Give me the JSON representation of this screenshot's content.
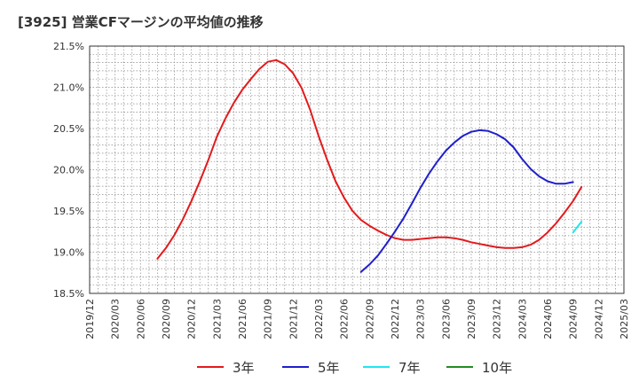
{
  "chart_data": {
    "type": "line",
    "title": "[3925]  営業CFマージンの平均値の推移",
    "yticks": [
      "21.5%",
      "21.0%",
      "20.5%",
      "20.0%",
      "19.5%",
      "19.0%",
      "18.5%"
    ],
    "ytick_values": [
      21.5,
      21.0,
      20.5,
      20.0,
      19.5,
      19.0,
      18.5
    ],
    "ylim": [
      18.5,
      21.5
    ],
    "xlim": [
      "2019-12",
      "2025-03"
    ],
    "xticks": [
      "2019/12",
      "2020/03",
      "2020/06",
      "2020/09",
      "2020/12",
      "2021/03",
      "2021/06",
      "2021/09",
      "2021/12",
      "2022/03",
      "2022/06",
      "2022/09",
      "2022/12",
      "2023/03",
      "2023/06",
      "2023/09",
      "2023/12",
      "2024/03",
      "2024/06",
      "2024/09",
      "2024/12",
      "2025/03"
    ],
    "grid": true,
    "legend_position": "bottom",
    "series": [
      {
        "name": "3年",
        "color": "#e31a1c",
        "points": [
          [
            "2020-08",
            18.92
          ],
          [
            "2020-09",
            19.05
          ],
          [
            "2020-10",
            19.21
          ],
          [
            "2020-11",
            19.4
          ],
          [
            "2020-12",
            19.62
          ],
          [
            "2021-01",
            19.86
          ],
          [
            "2021-02",
            20.12
          ],
          [
            "2021-03",
            20.4
          ],
          [
            "2021-04",
            20.62
          ],
          [
            "2021-05",
            20.81
          ],
          [
            "2021-06",
            20.97
          ],
          [
            "2021-07",
            21.1
          ],
          [
            "2021-08",
            21.22
          ],
          [
            "2021-09",
            21.31
          ],
          [
            "2021-10",
            21.33
          ],
          [
            "2021-11",
            21.28
          ],
          [
            "2021-12",
            21.17
          ],
          [
            "2022-01",
            20.99
          ],
          [
            "2022-02",
            20.73
          ],
          [
            "2022-03",
            20.41
          ],
          [
            "2022-04",
            20.12
          ],
          [
            "2022-05",
            19.86
          ],
          [
            "2022-06",
            19.66
          ],
          [
            "2022-07",
            19.5
          ],
          [
            "2022-08",
            19.39
          ],
          [
            "2022-09",
            19.32
          ],
          [
            "2022-10",
            19.26
          ],
          [
            "2022-11",
            19.21
          ],
          [
            "2022-12",
            19.17
          ],
          [
            "2023-01",
            19.15
          ],
          [
            "2023-02",
            19.15
          ],
          [
            "2023-03",
            19.16
          ],
          [
            "2023-04",
            19.17
          ],
          [
            "2023-05",
            19.18
          ],
          [
            "2023-06",
            19.18
          ],
          [
            "2023-07",
            19.17
          ],
          [
            "2023-08",
            19.15
          ],
          [
            "2023-09",
            19.12
          ],
          [
            "2023-10",
            19.1
          ],
          [
            "2023-11",
            19.08
          ],
          [
            "2023-12",
            19.06
          ],
          [
            "2024-01",
            19.05
          ],
          [
            "2024-02",
            19.05
          ],
          [
            "2024-03",
            19.06
          ],
          [
            "2024-04",
            19.09
          ],
          [
            "2024-05",
            19.15
          ],
          [
            "2024-06",
            19.24
          ],
          [
            "2024-07",
            19.35
          ],
          [
            "2024-08",
            19.48
          ],
          [
            "2024-09",
            19.62
          ],
          [
            "2024-10",
            19.79
          ]
        ]
      },
      {
        "name": "5年",
        "color": "#1f1fcc",
        "points": [
          [
            "2022-08",
            18.76
          ],
          [
            "2022-09",
            18.85
          ],
          [
            "2022-10",
            18.96
          ],
          [
            "2022-11",
            19.1
          ],
          [
            "2022-12",
            19.25
          ],
          [
            "2023-01",
            19.41
          ],
          [
            "2023-02",
            19.59
          ],
          [
            "2023-03",
            19.78
          ],
          [
            "2023-04",
            19.95
          ],
          [
            "2023-05",
            20.1
          ],
          [
            "2023-06",
            20.23
          ],
          [
            "2023-07",
            20.33
          ],
          [
            "2023-08",
            20.41
          ],
          [
            "2023-09",
            20.46
          ],
          [
            "2023-10",
            20.48
          ],
          [
            "2023-11",
            20.47
          ],
          [
            "2023-12",
            20.43
          ],
          [
            "2024-01",
            20.37
          ],
          [
            "2024-02",
            20.27
          ],
          [
            "2024-03",
            20.13
          ],
          [
            "2024-04",
            20.01
          ],
          [
            "2024-05",
            19.92
          ],
          [
            "2024-06",
            19.86
          ],
          [
            "2024-07",
            19.83
          ],
          [
            "2024-08",
            19.83
          ],
          [
            "2024-09",
            19.85
          ]
        ]
      },
      {
        "name": "7年",
        "color": "#22e5f0",
        "points": [
          [
            "2024-09",
            19.24
          ],
          [
            "2024-10",
            19.37
          ]
        ]
      },
      {
        "name": "10年",
        "color": "#228b22",
        "points": []
      }
    ]
  }
}
